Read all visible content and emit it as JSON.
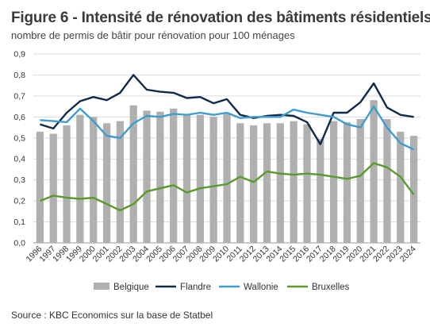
{
  "title": "Figure 6 - Intensité de rénovation des bâtiments résidentiels",
  "subtitle": "nombre de permis de bâtir pour rénovation pour 100 ménages",
  "source": "Source : KBC Economics sur la base de Statbel",
  "chart_data": {
    "type": "bar+line",
    "categories": [
      "1996",
      "1997",
      "1998",
      "1999",
      "2000",
      "2001",
      "2002",
      "2003",
      "2004",
      "2005",
      "2006",
      "2007",
      "2008",
      "2009",
      "2010",
      "2011",
      "2012",
      "2013",
      "2014",
      "2015",
      "2016",
      "2017",
      "2018",
      "2019",
      "2020",
      "2021",
      "2022",
      "2023",
      "2024"
    ],
    "ylim": [
      0,
      0.9
    ],
    "yticks": [
      "0,0",
      "0,1",
      "0,2",
      "0,3",
      "0,4",
      "0,5",
      "0,6",
      "0,7",
      "0,8",
      "0,9"
    ],
    "grid": true,
    "legend_position": "bottom",
    "series": [
      {
        "name": "Belgique",
        "kind": "bar",
        "color": "#b0b0b0",
        "values": [
          0.53,
          0.52,
          0.56,
          0.61,
          0.6,
          0.57,
          0.58,
          0.655,
          0.63,
          0.625,
          0.64,
          0.61,
          0.61,
          0.6,
          0.615,
          0.57,
          0.56,
          0.57,
          0.57,
          0.58,
          0.565,
          0.495,
          0.58,
          0.575,
          0.59,
          0.68,
          0.59,
          0.53,
          0.51
        ]
      },
      {
        "name": "Flandre",
        "kind": "line",
        "color": "#0f2a4a",
        "values": [
          0.565,
          0.545,
          0.62,
          0.675,
          0.695,
          0.68,
          0.715,
          0.8,
          0.73,
          0.72,
          0.715,
          0.69,
          0.695,
          0.665,
          0.685,
          0.61,
          0.595,
          0.605,
          0.61,
          0.605,
          0.575,
          0.47,
          0.62,
          0.62,
          0.67,
          0.76,
          0.645,
          0.61,
          0.6
        ]
      },
      {
        "name": "Wallonie",
        "kind": "line",
        "color": "#3f9ccc",
        "values": [
          0.585,
          0.58,
          0.575,
          0.64,
          0.58,
          0.51,
          0.5,
          0.57,
          0.605,
          0.6,
          0.615,
          0.61,
          0.62,
          0.61,
          0.62,
          0.595,
          0.6,
          0.6,
          0.6,
          0.635,
          0.62,
          0.61,
          0.6,
          0.565,
          0.55,
          0.65,
          0.55,
          0.475,
          0.445
        ]
      },
      {
        "name": "Bruxelles",
        "kind": "line",
        "color": "#5a9a2b",
        "values": [
          0.2,
          0.225,
          0.215,
          0.21,
          0.215,
          0.185,
          0.155,
          0.185,
          0.245,
          0.26,
          0.275,
          0.24,
          0.26,
          0.27,
          0.28,
          0.315,
          0.29,
          0.34,
          0.33,
          0.325,
          0.33,
          0.325,
          0.315,
          0.305,
          0.32,
          0.38,
          0.36,
          0.315,
          0.23
        ]
      }
    ]
  }
}
